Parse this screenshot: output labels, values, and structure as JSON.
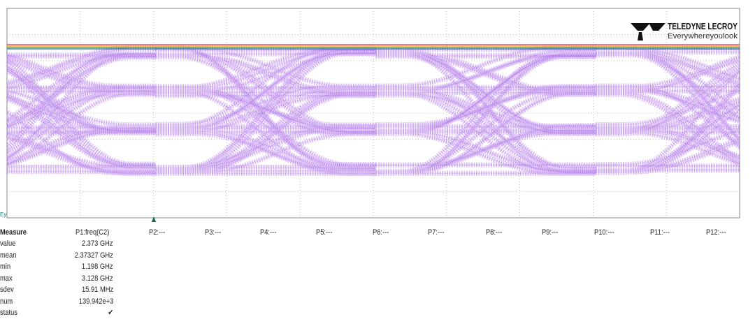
{
  "logo": {
    "brand": "TELEDYNE LECROY",
    "tagline": "Everywhereyoulook"
  },
  "marker": "Ey",
  "measure_table": {
    "columns": [
      "Measure",
      "P1:freq(C2)",
      "P2:---",
      "P3:---",
      "P4:---",
      "P5:---",
      "P6:---",
      "P7:---",
      "P8:---",
      "P9:---",
      "P10:---",
      "P11:---",
      "P12:---"
    ],
    "rows": [
      [
        "value",
        "2.373 GHz"
      ],
      [
        "mean",
        "2.37327 GHz"
      ],
      [
        "min",
        "1.198 GHz"
      ],
      [
        "max",
        "3.128 GHz"
      ],
      [
        "sdev",
        "15.91 MHz"
      ],
      [
        "num",
        "139.942e+3"
      ],
      [
        "status",
        "✔"
      ]
    ]
  }
}
